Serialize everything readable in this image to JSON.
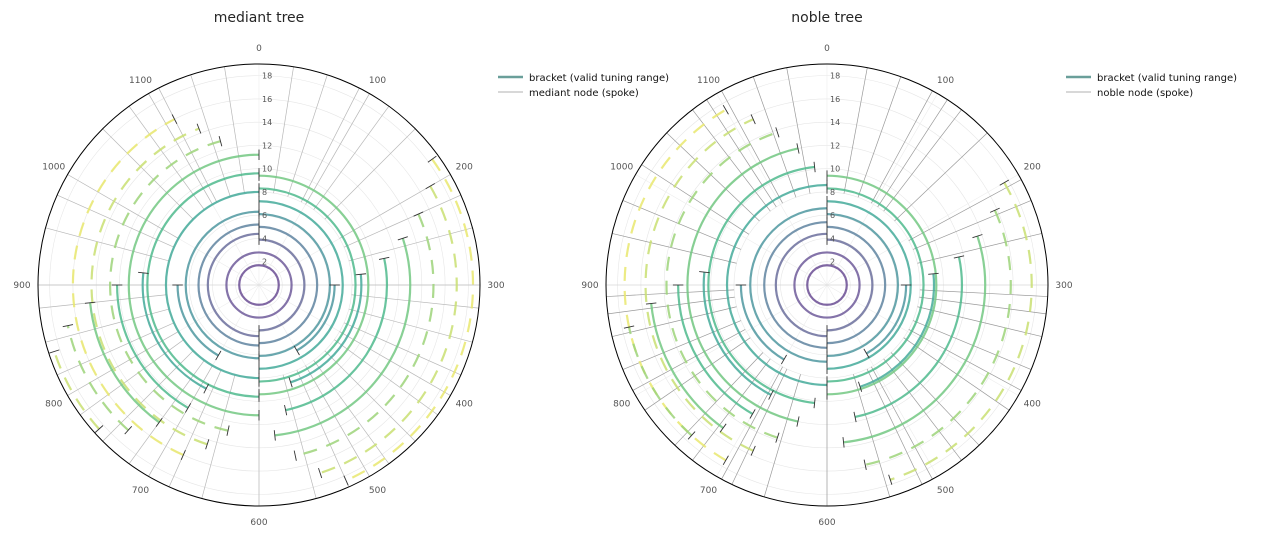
{
  "chart_data": [
    {
      "type": "polar",
      "title": "mediant tree",
      "angular_ticks": [
        "0",
        "100",
        "200",
        "300",
        "400",
        "500",
        "600",
        "700",
        "800",
        "900",
        "1000",
        "1100"
      ],
      "angular_range": [
        0,
        1200
      ],
      "radial_ticks": [
        "2",
        "4",
        "6",
        "8",
        "10",
        "12",
        "14",
        "16",
        "18"
      ],
      "radial_range": [
        0,
        19
      ],
      "grid": true,
      "legend_position": "top-right",
      "legend": [
        {
          "label": "bracket (valid tuning range)",
          "kind": "thick",
          "color": "#6a9f9a"
        },
        {
          "label": "mediant node (spoke)",
          "kind": "thin",
          "color": "#999999"
        }
      ],
      "brackets": [
        {
          "depth": 1,
          "radius": 1.7,
          "start": 0,
          "end": 1200
        },
        {
          "depth": 2,
          "radius": 2.8,
          "start": 0,
          "end": 1200
        },
        {
          "depth": 3,
          "radius": 3.9,
          "start": 0,
          "end": 600
        },
        {
          "depth": 3,
          "radius": 4.4,
          "start": 600,
          "end": 1200
        },
        {
          "depth": 4,
          "radius": 5.0,
          "start": 0,
          "end": 600
        },
        {
          "depth": 4,
          "radius": 5.2,
          "start": 600,
          "end": 1200
        },
        {
          "depth": 5,
          "radius": 6.1,
          "start": 0,
          "end": 600
        },
        {
          "depth": 5,
          "radius": 6.3,
          "start": 600,
          "end": 1200
        },
        {
          "depth": 6,
          "radius": 7.2,
          "start": 0,
          "end": 600
        },
        {
          "depth": 6,
          "radius": 8.0,
          "start": 600,
          "end": 1200
        },
        {
          "depth": 7,
          "radius": 8.3,
          "start": 0,
          "end": 600
        },
        {
          "depth": 7,
          "radius": 9.6,
          "start": 600,
          "end": 1200
        },
        {
          "depth": 8,
          "radius": 9.4,
          "start": 0,
          "end": 600
        },
        {
          "depth": 8,
          "radius": 11.2,
          "start": 600,
          "end": 1200
        },
        {
          "depth": 9,
          "radius": 12.8,
          "start": 640,
          "end": 1150
        },
        {
          "depth": 10,
          "radius": 14.4,
          "start": 660,
          "end": 1130
        },
        {
          "depth": 11,
          "radius": 16.0,
          "start": 680,
          "end": 1110
        },
        {
          "depth": 5,
          "radius": 6.5,
          "start": 300,
          "end": 500
        },
        {
          "depth": 6,
          "radius": 8.8,
          "start": 280,
          "end": 540
        },
        {
          "depth": 7,
          "radius": 11.0,
          "start": 260,
          "end": 560
        },
        {
          "depth": 8,
          "radius": 13.0,
          "start": 240,
          "end": 580
        },
        {
          "depth": 9,
          "radius": 15.0,
          "start": 220,
          "end": 560
        },
        {
          "depth": 10,
          "radius": 17.0,
          "start": 200,
          "end": 540
        },
        {
          "depth": 11,
          "radius": 18.4,
          "start": 180,
          "end": 520
        },
        {
          "depth": 5,
          "radius": 7.0,
          "start": 700,
          "end": 900
        },
        {
          "depth": 6,
          "radius": 10.0,
          "start": 690,
          "end": 920
        },
        {
          "depth": 7,
          "radius": 12.2,
          "start": 700,
          "end": 900
        },
        {
          "depth": 8,
          "radius": 14.6,
          "start": 720,
          "end": 880
        },
        {
          "depth": 9,
          "radius": 16.8,
          "start": 740,
          "end": 860
        },
        {
          "depth": 10,
          "radius": 18.5,
          "start": 760,
          "end": 840
        }
      ],
      "spokes": [
        600,
        300,
        900,
        400,
        500,
        200,
        700,
        800,
        1000,
        100,
        1100,
        350,
        450,
        550,
        650,
        750,
        850,
        250,
        950,
        150,
        1050,
        60,
        1140,
        320,
        480,
        720,
        880,
        520,
        680,
        420,
        780,
        380,
        820,
        220,
        980,
        120,
        1080,
        90,
        1110,
        30,
        1170
      ],
      "spoke_inner_radius": 8.0
    },
    {
      "type": "polar",
      "title": "noble tree",
      "angular_ticks": [
        "0",
        "100",
        "200",
        "300",
        "400",
        "500",
        "600",
        "700",
        "800",
        "900",
        "1000",
        "1100"
      ],
      "angular_range": [
        0,
        1200
      ],
      "radial_ticks": [
        "2",
        "4",
        "6",
        "8",
        "10",
        "12",
        "14",
        "16",
        "18"
      ],
      "radial_range": [
        0,
        19
      ],
      "grid": true,
      "legend_position": "top-right",
      "legend": [
        {
          "label": "bracket (valid tuning range)",
          "kind": "thick",
          "color": "#6a9f9a"
        },
        {
          "label": "noble node (spoke)",
          "kind": "thin",
          "color": "#999999"
        }
      ],
      "brackets": [
        {
          "depth": 1,
          "radius": 1.7,
          "start": 0,
          "end": 1200
        },
        {
          "depth": 2,
          "radius": 2.8,
          "start": 0,
          "end": 1200
        },
        {
          "depth": 3,
          "radius": 3.9,
          "start": 0,
          "end": 600
        },
        {
          "depth": 3,
          "radius": 4.4,
          "start": 600,
          "end": 1200
        },
        {
          "depth": 4,
          "radius": 5.0,
          "start": 0,
          "end": 600
        },
        {
          "depth": 4,
          "radius": 5.4,
          "start": 600,
          "end": 1200
        },
        {
          "depth": 5,
          "radius": 6.1,
          "start": 0,
          "end": 600
        },
        {
          "depth": 5,
          "radius": 6.6,
          "start": 600,
          "end": 1200
        },
        {
          "depth": 6,
          "radius": 7.2,
          "start": 0,
          "end": 600
        },
        {
          "depth": 6,
          "radius": 8.6,
          "start": 600,
          "end": 1200
        },
        {
          "depth": 7,
          "radius": 8.3,
          "start": 0,
          "end": 600
        },
        {
          "depth": 7,
          "radius": 10.2,
          "start": 620,
          "end": 1180
        },
        {
          "depth": 8,
          "radius": 9.4,
          "start": 0,
          "end": 600
        },
        {
          "depth": 8,
          "radius": 12.0,
          "start": 640,
          "end": 1160
        },
        {
          "depth": 9,
          "radius": 13.8,
          "start": 660,
          "end": 1140
        },
        {
          "depth": 10,
          "radius": 15.6,
          "start": 680,
          "end": 1120
        },
        {
          "depth": 11,
          "radius": 17.4,
          "start": 700,
          "end": 1100
        },
        {
          "depth": 5,
          "radius": 6.8,
          "start": 300,
          "end": 500
        },
        {
          "depth": 6,
          "radius": 9.2,
          "start": 280,
          "end": 540
        },
        {
          "depth": 7,
          "radius": 11.6,
          "start": 260,
          "end": 560
        },
        {
          "depth": 8,
          "radius": 13.6,
          "start": 240,
          "end": 580
        },
        {
          "depth": 9,
          "radius": 15.8,
          "start": 220,
          "end": 560
        },
        {
          "depth": 10,
          "radius": 17.6,
          "start": 200,
          "end": 540
        },
        {
          "depth": 5,
          "radius": 7.4,
          "start": 700,
          "end": 900
        },
        {
          "depth": 6,
          "radius": 10.6,
          "start": 690,
          "end": 920
        },
        {
          "depth": 7,
          "radius": 12.8,
          "start": 700,
          "end": 900
        },
        {
          "depth": 8,
          "radius": 15.2,
          "start": 720,
          "end": 880
        },
        {
          "depth": 9,
          "radius": 17.4,
          "start": 740,
          "end": 860
        }
      ],
      "spokes": [
        600,
        310,
        890,
        395,
        505,
        205,
        695,
        805,
        1010,
        110,
        1090,
        345,
        455,
        545,
        655,
        745,
        855,
        255,
        945,
        155,
        1045,
        65,
        1135,
        325,
        475,
        725,
        875,
        515,
        685,
        415,
        785,
        375,
        825,
        225,
        975,
        125,
        1075,
        95,
        1105,
        35,
        1165
      ],
      "spoke_inner_radius": 8.0
    }
  ]
}
